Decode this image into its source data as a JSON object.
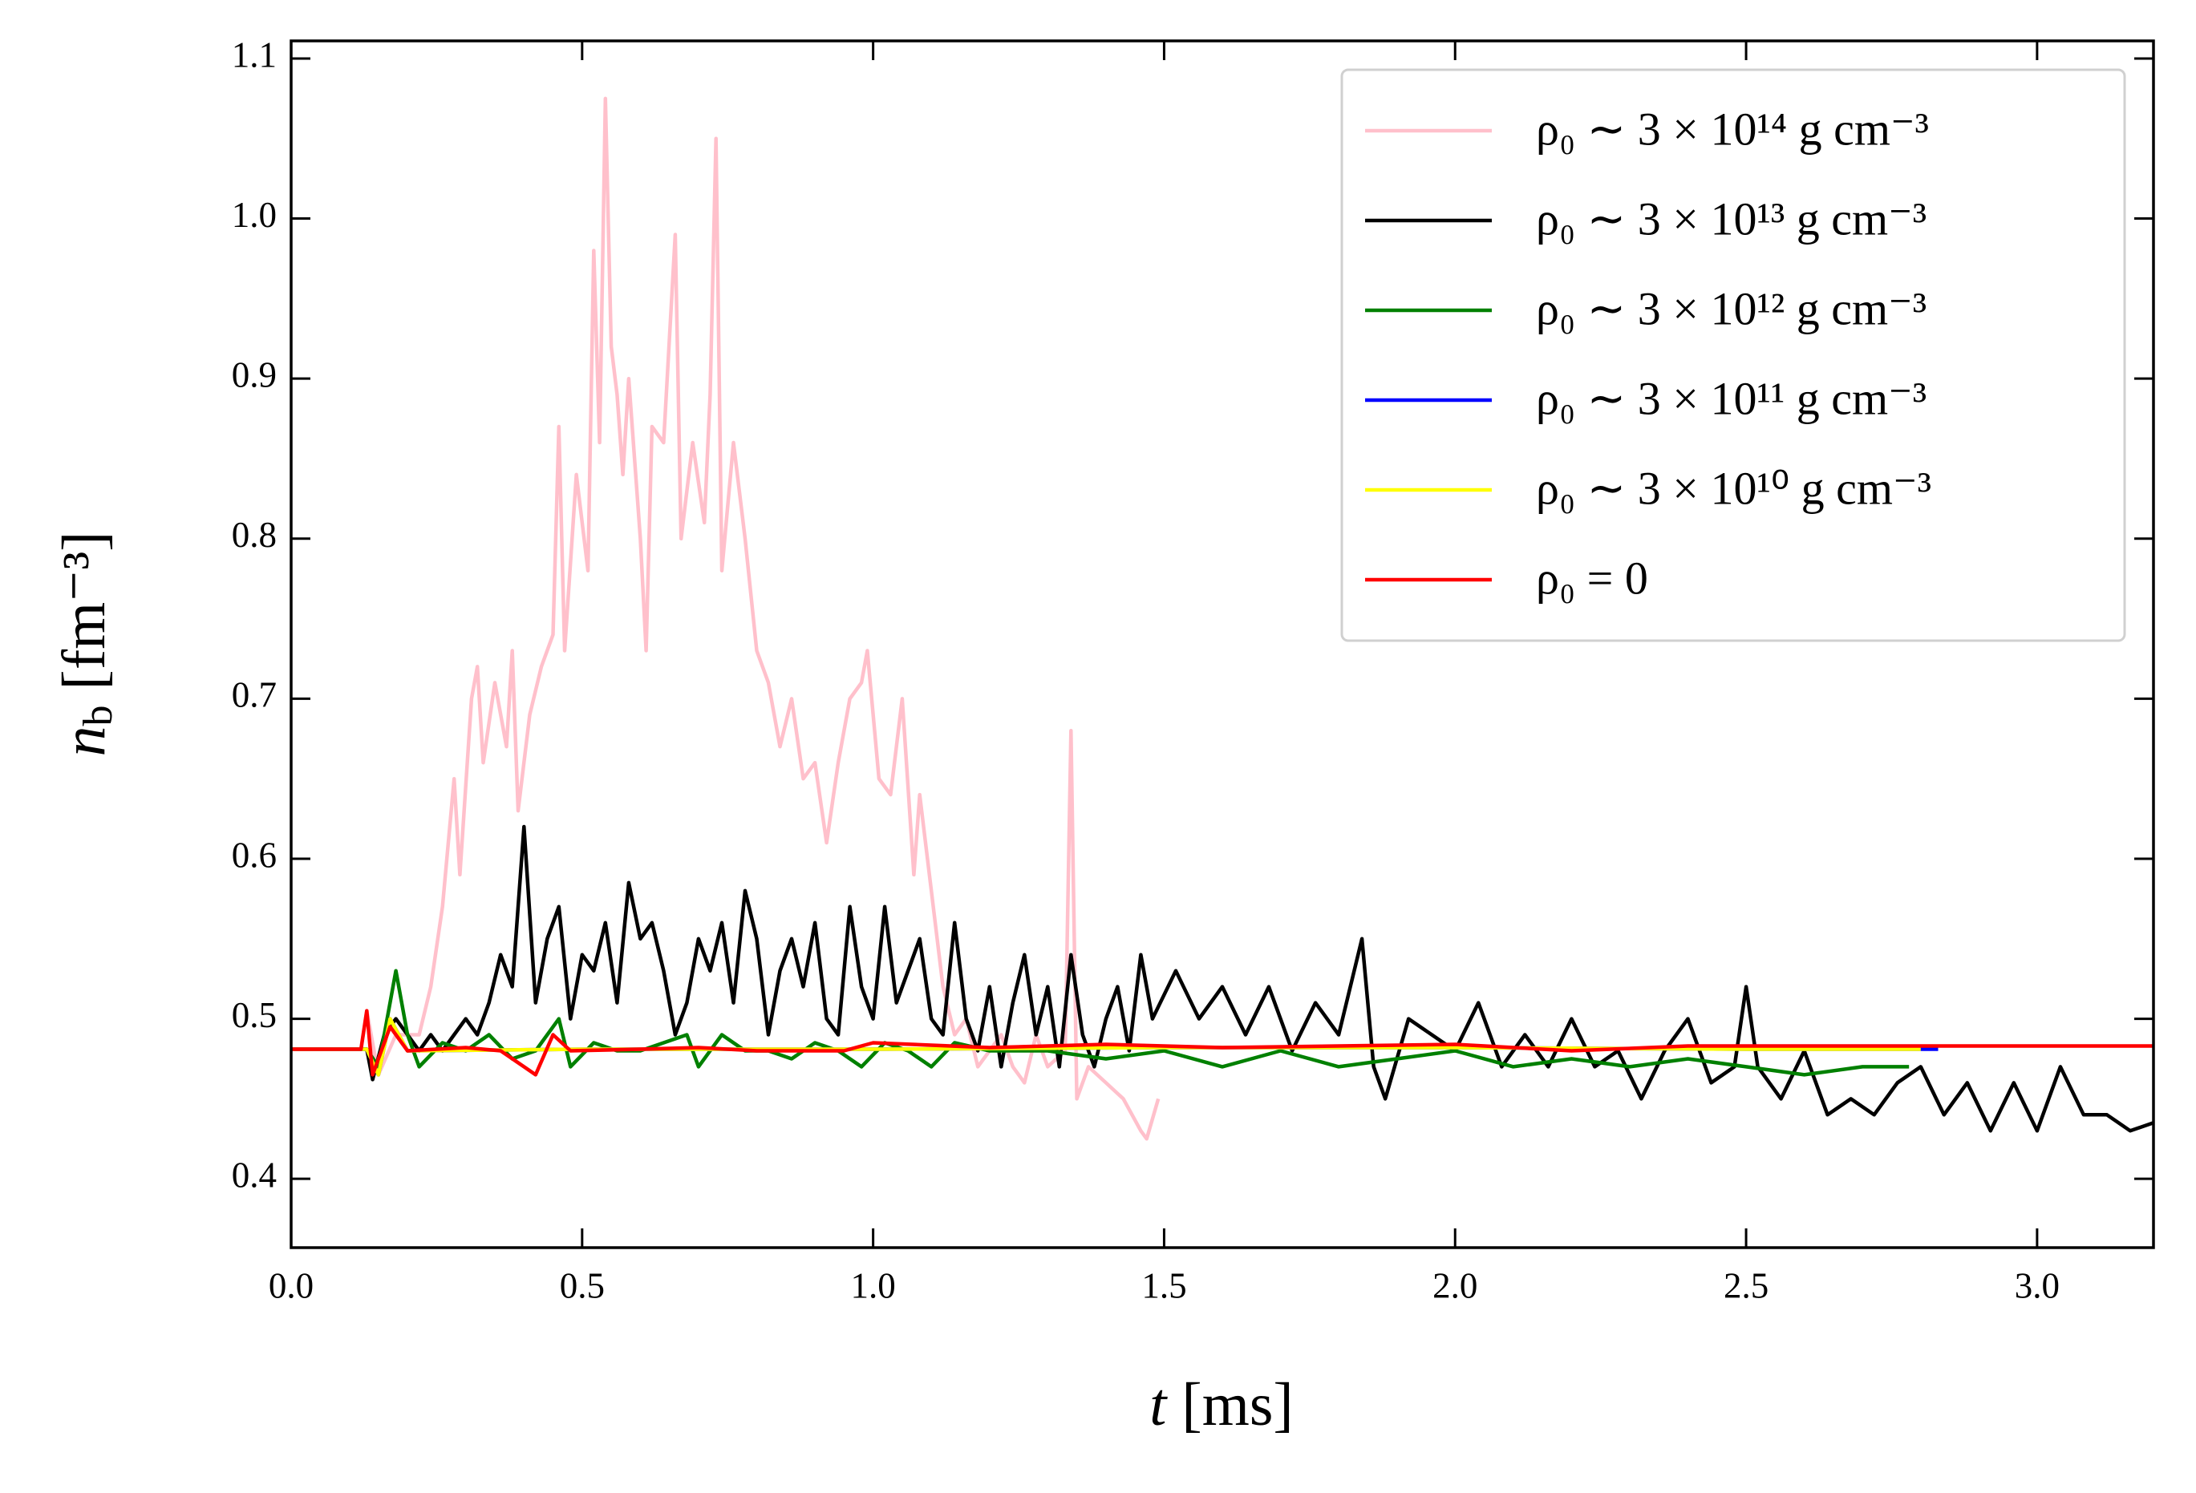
{
  "chart_data": {
    "type": "line",
    "xlabel": "t [ms]",
    "ylabel": "nb [fm⁻³]",
    "xlim": [
      0,
      3.2
    ],
    "ylim": [
      0.357,
      1.111
    ],
    "xticks": [
      {
        "value": 0,
        "label": "0.0"
      },
      0.5,
      {
        "value": 1,
        "label": "1.0"
      },
      1.5,
      {
        "value": 2,
        "label": "2.0"
      },
      2.5,
      {
        "value": 3,
        "label": "3.0"
      }
    ],
    "yticks": [
      0.4,
      0.5,
      0.6,
      0.7,
      0.8,
      0.9,
      {
        "value": 1,
        "label": "1.0"
      },
      1.1
    ],
    "legend": "upper right",
    "series": [
      {
        "name": "ρ₀ ∼ 3 × 10¹⁴ g cm⁻³",
        "color": "#ffc0cb",
        "x": [
          0.0,
          0.12,
          0.13,
          0.15,
          0.18,
          0.22,
          0.24,
          0.26,
          0.28,
          0.29,
          0.31,
          0.32,
          0.33,
          0.35,
          0.37,
          0.38,
          0.39,
          0.41,
          0.43,
          0.45,
          0.46,
          0.47,
          0.49,
          0.51,
          0.52,
          0.53,
          0.54,
          0.55,
          0.56,
          0.57,
          0.58,
          0.6,
          0.61,
          0.62,
          0.64,
          0.66,
          0.67,
          0.69,
          0.71,
          0.72,
          0.73,
          0.74,
          0.76,
          0.78,
          0.8,
          0.82,
          0.84,
          0.86,
          0.88,
          0.9,
          0.92,
          0.94,
          0.96,
          0.98,
          0.99,
          1.01,
          1.03,
          1.05,
          1.07,
          1.08,
          1.1,
          1.12,
          1.14,
          1.16,
          1.18,
          1.2,
          1.22,
          1.24,
          1.26,
          1.28,
          1.3,
          1.33,
          1.34,
          1.35,
          1.37,
          1.4,
          1.43,
          1.46,
          1.47,
          1.49
        ],
        "values": [
          0.481,
          0.481,
          0.505,
          0.465,
          0.49,
          0.49,
          0.52,
          0.57,
          0.65,
          0.59,
          0.7,
          0.72,
          0.66,
          0.71,
          0.67,
          0.73,
          0.63,
          0.69,
          0.72,
          0.74,
          0.87,
          0.73,
          0.84,
          0.78,
          0.98,
          0.86,
          1.075,
          0.92,
          0.89,
          0.84,
          0.9,
          0.8,
          0.73,
          0.87,
          0.86,
          0.99,
          0.8,
          0.86,
          0.81,
          0.89,
          1.05,
          0.78,
          0.86,
          0.8,
          0.73,
          0.71,
          0.67,
          0.7,
          0.65,
          0.66,
          0.61,
          0.66,
          0.7,
          0.71,
          0.73,
          0.65,
          0.64,
          0.7,
          0.59,
          0.64,
          0.58,
          0.52,
          0.49,
          0.5,
          0.47,
          0.48,
          0.49,
          0.47,
          0.46,
          0.49,
          0.47,
          0.48,
          0.68,
          0.45,
          0.47,
          0.46,
          0.45,
          0.43,
          0.425,
          0.45
        ]
      },
      {
        "name": "ρ₀ ∼ 3 × 10¹³ g cm⁻³",
        "color": "#000000",
        "x": [
          0.0,
          0.13,
          0.14,
          0.16,
          0.18,
          0.2,
          0.22,
          0.24,
          0.26,
          0.28,
          0.3,
          0.32,
          0.34,
          0.36,
          0.38,
          0.4,
          0.42,
          0.44,
          0.46,
          0.48,
          0.5,
          0.52,
          0.54,
          0.56,
          0.58,
          0.6,
          0.62,
          0.64,
          0.66,
          0.68,
          0.7,
          0.72,
          0.74,
          0.76,
          0.78,
          0.8,
          0.82,
          0.84,
          0.86,
          0.88,
          0.9,
          0.92,
          0.94,
          0.96,
          0.98,
          1.0,
          1.02,
          1.04,
          1.06,
          1.08,
          1.1,
          1.12,
          1.14,
          1.16,
          1.18,
          1.2,
          1.22,
          1.24,
          1.26,
          1.28,
          1.3,
          1.32,
          1.34,
          1.36,
          1.38,
          1.4,
          1.42,
          1.44,
          1.46,
          1.48,
          1.52,
          1.56,
          1.6,
          1.64,
          1.68,
          1.72,
          1.76,
          1.8,
          1.84,
          1.86,
          1.88,
          1.92,
          1.96,
          2.0,
          2.04,
          2.08,
          2.12,
          2.16,
          2.2,
          2.24,
          2.28,
          2.32,
          2.36,
          2.4,
          2.44,
          2.48,
          2.5,
          2.52,
          2.56,
          2.6,
          2.64,
          2.68,
          2.72,
          2.76,
          2.8,
          2.84,
          2.88,
          2.92,
          2.96,
          3.0,
          3.04,
          3.08,
          3.12,
          3.16,
          3.2
        ],
        "values": [
          0.481,
          0.481,
          0.462,
          0.49,
          0.5,
          0.49,
          0.48,
          0.49,
          0.48,
          0.49,
          0.5,
          0.49,
          0.51,
          0.54,
          0.52,
          0.62,
          0.51,
          0.55,
          0.57,
          0.5,
          0.54,
          0.53,
          0.56,
          0.51,
          0.585,
          0.55,
          0.56,
          0.53,
          0.49,
          0.51,
          0.55,
          0.53,
          0.56,
          0.51,
          0.58,
          0.55,
          0.49,
          0.53,
          0.55,
          0.52,
          0.56,
          0.5,
          0.49,
          0.57,
          0.52,
          0.5,
          0.57,
          0.51,
          0.53,
          0.55,
          0.5,
          0.49,
          0.56,
          0.5,
          0.48,
          0.52,
          0.47,
          0.51,
          0.54,
          0.49,
          0.52,
          0.47,
          0.54,
          0.49,
          0.47,
          0.5,
          0.52,
          0.48,
          0.54,
          0.5,
          0.53,
          0.5,
          0.52,
          0.49,
          0.52,
          0.48,
          0.51,
          0.49,
          0.55,
          0.47,
          0.45,
          0.5,
          0.49,
          0.48,
          0.51,
          0.47,
          0.49,
          0.47,
          0.5,
          0.47,
          0.48,
          0.45,
          0.48,
          0.5,
          0.46,
          0.47,
          0.52,
          0.47,
          0.45,
          0.48,
          0.44,
          0.45,
          0.44,
          0.46,
          0.47,
          0.44,
          0.46,
          0.43,
          0.46,
          0.43,
          0.47,
          0.44,
          0.44,
          0.43,
          0.435
        ]
      },
      {
        "name": "ρ₀ ∼ 3 × 10¹² g cm⁻³",
        "color": "#008000",
        "x": [
          0.0,
          0.13,
          0.15,
          0.18,
          0.2,
          0.22,
          0.26,
          0.3,
          0.34,
          0.38,
          0.42,
          0.46,
          0.48,
          0.52,
          0.56,
          0.6,
          0.64,
          0.68,
          0.7,
          0.74,
          0.78,
          0.82,
          0.86,
          0.9,
          0.94,
          0.98,
          1.02,
          1.06,
          1.1,
          1.14,
          1.2,
          1.3,
          1.4,
          1.5,
          1.6,
          1.7,
          1.8,
          1.9,
          2.0,
          2.1,
          2.2,
          2.3,
          2.4,
          2.5,
          2.6,
          2.7,
          2.78
        ],
        "values": [
          0.481,
          0.481,
          0.47,
          0.53,
          0.49,
          0.47,
          0.485,
          0.48,
          0.49,
          0.475,
          0.48,
          0.5,
          0.47,
          0.485,
          0.48,
          0.48,
          0.485,
          0.49,
          0.47,
          0.49,
          0.48,
          0.48,
          0.475,
          0.485,
          0.48,
          0.47,
          0.485,
          0.48,
          0.47,
          0.485,
          0.48,
          0.48,
          0.475,
          0.48,
          0.47,
          0.48,
          0.47,
          0.475,
          0.48,
          0.47,
          0.475,
          0.47,
          0.475,
          0.47,
          0.465,
          0.47,
          0.47
        ]
      },
      {
        "name": "ρ₀ ∼ 3 × 10¹¹ g cm⁻³",
        "color": "#0000ff",
        "x": [
          0.0,
          0.13,
          0.15,
          0.17,
          0.2,
          0.5,
          1.0,
          1.5,
          2.0,
          2.5,
          2.83
        ],
        "values": [
          0.481,
          0.481,
          0.465,
          0.5,
          0.48,
          0.481,
          0.481,
          0.482,
          0.482,
          0.481,
          0.481
        ]
      },
      {
        "name": "ρ₀ ∼ 3 × 10¹⁰ g cm⁻³",
        "color": "#ffff00",
        "x": [
          0.0,
          0.13,
          0.15,
          0.17,
          0.2,
          0.5,
          1.0,
          1.5,
          2.0,
          2.5,
          2.8
        ],
        "values": [
          0.481,
          0.481,
          0.465,
          0.5,
          0.48,
          0.481,
          0.481,
          0.482,
          0.482,
          0.481,
          0.481
        ]
      },
      {
        "name": "ρ₀ = 0",
        "color": "#ff0000",
        "x": [
          0,
          0.12,
          0.13,
          0.14,
          0.17,
          0.2,
          0.3,
          0.36,
          0.4,
          0.42,
          0.45,
          0.48,
          0.6,
          0.7,
          0.8,
          0.95,
          1.0,
          1.2,
          1.4,
          1.6,
          1.8,
          2.0,
          2.2,
          2.4,
          2.6,
          2.8,
          3.0,
          3.2
        ],
        "values": [
          0.481,
          0.481,
          0.505,
          0.465,
          0.495,
          0.48,
          0.482,
          0.48,
          0.47,
          0.465,
          0.49,
          0.48,
          0.481,
          0.482,
          0.48,
          0.48,
          0.485,
          0.482,
          0.484,
          0.482,
          0.483,
          0.484,
          0.48,
          0.483,
          0.483,
          0.483,
          0.483,
          0.483
        ]
      }
    ]
  }
}
